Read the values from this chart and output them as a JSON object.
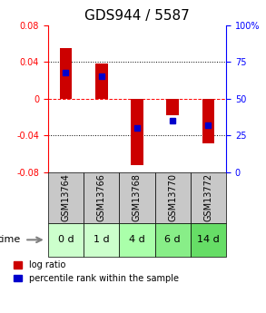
{
  "title": "GDS944 / 5587",
  "samples": [
    "GSM13764",
    "GSM13766",
    "GSM13768",
    "GSM13770",
    "GSM13772"
  ],
  "time_labels": [
    "0 d",
    "1 d",
    "4 d",
    "6 d",
    "14 d"
  ],
  "log_ratios": [
    0.055,
    0.038,
    -0.072,
    -0.018,
    -0.048
  ],
  "percentile_ranks": [
    68,
    65,
    30,
    35,
    32
  ],
  "ylim_left": [
    -0.08,
    0.08
  ],
  "ylim_right": [
    0,
    100
  ],
  "bar_color": "#cc0000",
  "percentile_color": "#0000cc",
  "grid_color": "#000000",
  "title_fontsize": 11,
  "axis_fontsize": 8,
  "tick_fontsize": 7,
  "sample_label_fontsize": 7,
  "time_label_fontsize": 8,
  "bg_plot": "#ffffff",
  "bg_sample_row": "#c8c8c8",
  "bg_time_row_colors": [
    "#ccffcc",
    "#ccffcc",
    "#aaffaa",
    "#88ee88",
    "#66dd66"
  ],
  "time_arrow_color": "#888888",
  "legend_fontsize": 7,
  "bar_width": 0.35
}
